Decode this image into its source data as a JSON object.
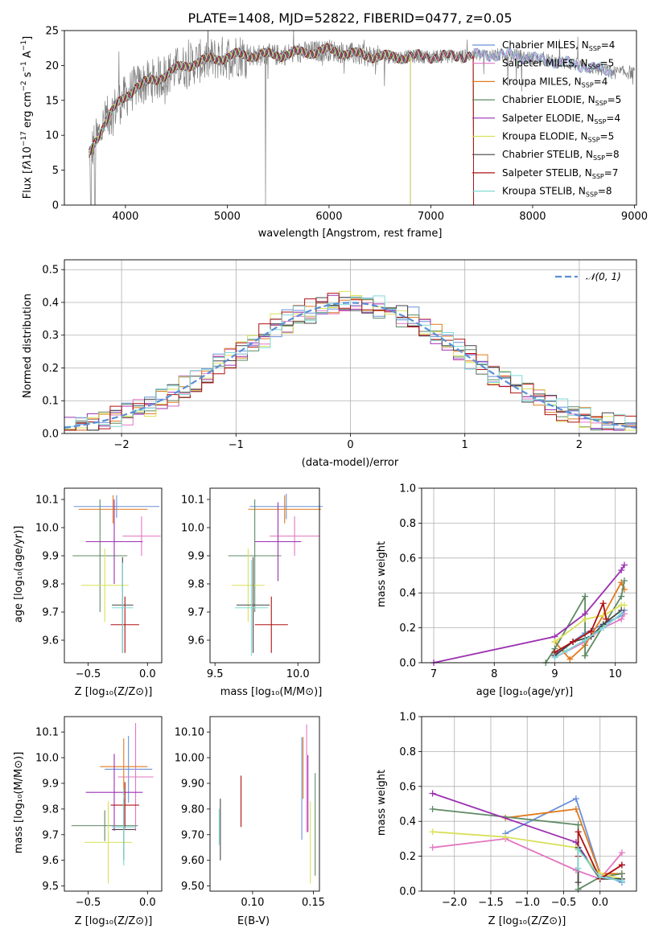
{
  "figure": {
    "title": "PLATE=1408, MJD=52822, FIBERID=0477, z=0.05",
    "palette": [
      "#6a8fd9",
      "#e377c2",
      "#e07a1f",
      "#5e8a63",
      "#9b30b0",
      "#d9e05a",
      "#444444",
      "#b01010",
      "#7fd9d6"
    ]
  },
  "chart_data": [
    {
      "type": "line",
      "id": "spectrum",
      "title": "PLATE=1408, MJD=52822, FIBERID=0477, z=0.05",
      "xlabel": "wavelength [Angstrom, rest frame]",
      "ylabel": "Flux [fλ10⁻¹⁷ erg cm⁻² s⁻¹ A⁻¹]",
      "xlim": [
        3400,
        9020
      ],
      "ylim": [
        0,
        25
      ],
      "xticks": [
        4000,
        5000,
        6000,
        7000,
        8000,
        9000
      ],
      "yticks": [
        0,
        5,
        10,
        15,
        20,
        25
      ],
      "continuum": [
        [
          3640,
          7
        ],
        [
          3700,
          9
        ],
        [
          3800,
          12
        ],
        [
          3900,
          14
        ],
        [
          4000,
          15.5
        ],
        [
          4100,
          17
        ],
        [
          4200,
          17.5
        ],
        [
          4300,
          18
        ],
        [
          4500,
          19.5
        ],
        [
          4700,
          20.5
        ],
        [
          4900,
          21
        ],
        [
          5100,
          21.5
        ],
        [
          5300,
          21.5
        ],
        [
          5500,
          21.5
        ],
        [
          5700,
          21.8
        ],
        [
          6000,
          22.2
        ],
        [
          6300,
          21.5
        ],
        [
          6600,
          21.2
        ],
        [
          6900,
          21.3
        ],
        [
          7200,
          21.3
        ],
        [
          7500,
          21.5
        ],
        [
          7800,
          21.5
        ],
        [
          8100,
          20.8
        ],
        [
          8400,
          20.2
        ],
        [
          8800,
          19
        ]
      ],
      "data_range": [
        3640,
        9000
      ],
      "legend_loc": "upper right",
      "series": [
        {
          "name": "Chabrier MILES, N",
          "sub": "SSP",
          "n": "=4",
          "end": 8790
        },
        {
          "name": "Salpeter MILES, N",
          "sub": "SSP",
          "n": "=5",
          "end": 8790
        },
        {
          "name": "Kroupa MILES, N",
          "sub": "SSP",
          "n": "=4",
          "end": 7420
        },
        {
          "name": "Chabrier ELODIE, N",
          "sub": "SSP",
          "n": "=5",
          "end": 6800
        },
        {
          "name": "Salpeter ELODIE, N",
          "sub": "SSP",
          "n": "=4",
          "end": 6800
        },
        {
          "name": "Kroupa ELODIE, N",
          "sub": "SSP",
          "n": "=5",
          "end": 6800
        },
        {
          "name": "Chabrier STELIB, N",
          "sub": "SSP",
          "n": "=8",
          "end": 7420
        },
        {
          "name": "Salpeter STELIB, N",
          "sub": "SSP",
          "n": "=7",
          "end": 7420
        },
        {
          "name": "Kroupa STELIB, N",
          "sub": "SSP",
          "n": "=8",
          "end": 8790
        }
      ]
    },
    {
      "type": "area",
      "id": "residuals",
      "xlabel": "(data-model)/error",
      "ylabel": "Normed distribution",
      "xlim": [
        -2.5,
        2.5
      ],
      "ylim": [
        0,
        0.53
      ],
      "xticks": [
        -2,
        -1,
        0,
        1,
        2
      ],
      "yticks": [
        0.0,
        0.1,
        0.2,
        0.3,
        0.4,
        0.5
      ],
      "bin_width": 0.1,
      "grid": true,
      "legend_loc": "upper right",
      "reference": {
        "label": "𝒩(0, 1)",
        "mean": 0,
        "sigma": 1
      }
    },
    {
      "type": "scatter",
      "id": "age_vs_Z",
      "xlabel": "Z [log₁₀(Z/Z⊙)]",
      "ylabel": "age  [log₁₀(age/yr)]",
      "xlim": [
        -0.7,
        0.12
      ],
      "ylim": [
        9.52,
        10.14
      ],
      "xticks": [
        -0.5,
        0.0
      ],
      "yticks": [
        9.6,
        9.7,
        9.8,
        9.9,
        10.0,
        10.1
      ],
      "points": [
        {
          "x": -0.26,
          "xerr": 0.36,
          "y": 10.075,
          "yerr": 0.04,
          "color": 0
        },
        {
          "x": -0.05,
          "xerr": 0.16,
          "y": 9.97,
          "yerr": 0.07,
          "color": 1
        },
        {
          "x": -0.29,
          "xerr": 0.29,
          "y": 10.065,
          "yerr": 0.05,
          "color": 2
        },
        {
          "x": -0.4,
          "xerr": 0.23,
          "y": 9.9,
          "yerr": 0.2,
          "color": 3
        },
        {
          "x": -0.28,
          "xerr": 0.24,
          "y": 9.95,
          "yerr": 0.15,
          "color": 4
        },
        {
          "x": -0.36,
          "xerr": 0.2,
          "y": 9.795,
          "yerr": 0.13,
          "color": 5
        },
        {
          "x": -0.21,
          "xerr": 0.09,
          "y": 9.725,
          "yerr": 0.17,
          "color": 6
        },
        {
          "x": -0.19,
          "xerr": 0.12,
          "y": 9.655,
          "yerr": 0.1,
          "color": 7
        },
        {
          "x": -0.21,
          "xerr": 0.09,
          "y": 9.715,
          "yerr": 0.16,
          "color": 8
        }
      ]
    },
    {
      "type": "scatter",
      "id": "age_vs_mass",
      "xlabel": "mass [log₁₀(M/M⊙)]",
      "ylabel": "",
      "xlim": [
        9.47,
        10.13
      ],
      "ylim": [
        9.52,
        10.14
      ],
      "xticks": [
        9.5,
        10.0
      ],
      "yticks": [
        9.6,
        9.7,
        9.8,
        9.9,
        10.0,
        10.1
      ],
      "points": [
        {
          "x": 9.93,
          "xerr": 0.22,
          "y": 10.075,
          "yerr": 0.045,
          "color": 0
        },
        {
          "x": 9.98,
          "xerr": 0.15,
          "y": 9.97,
          "yerr": 0.07,
          "color": 1
        },
        {
          "x": 9.92,
          "xerr": 0.22,
          "y": 10.065,
          "yerr": 0.05,
          "color": 2
        },
        {
          "x": 9.74,
          "xerr": 0.16,
          "y": 9.9,
          "yerr": 0.2,
          "color": 3
        },
        {
          "x": 9.88,
          "xerr": 0.14,
          "y": 9.95,
          "yerr": 0.14,
          "color": 4
        },
        {
          "x": 9.7,
          "xerr": 0.1,
          "y": 9.795,
          "yerr": 0.13,
          "color": 5
        },
        {
          "x": 9.73,
          "xerr": 0.1,
          "y": 9.725,
          "yerr": 0.17,
          "color": 6
        },
        {
          "x": 9.84,
          "xerr": 0.1,
          "y": 9.655,
          "yerr": 0.1,
          "color": 7
        },
        {
          "x": 9.72,
          "xerr": 0.1,
          "y": 9.715,
          "yerr": 0.17,
          "color": 8
        }
      ]
    },
    {
      "type": "line",
      "id": "massweight_vs_age",
      "xlabel": "age  [log₁₀(age/yr)]",
      "ylabel": "mass weight",
      "xlim": [
        6.8,
        10.35
      ],
      "ylim": [
        0,
        1
      ],
      "xticks": [
        7,
        8,
        9,
        10
      ],
      "yticks": [
        0.0,
        0.2,
        0.4,
        0.6,
        0.8,
        1.0
      ],
      "grid": true,
      "series": [
        {
          "color": 0,
          "x": [
            9.0,
            9.5,
            9.8,
            10.1,
            10.15
          ],
          "y": [
            0.05,
            0.17,
            0.22,
            0.27,
            0.3
          ]
        },
        {
          "color": 1,
          "x": [
            9.0,
            9.5,
            9.8,
            10.1,
            10.15
          ],
          "y": [
            0.03,
            0.12,
            0.2,
            0.25,
            0.28
          ]
        },
        {
          "color": 2,
          "x": [
            9.0,
            9.25,
            9.5,
            9.8,
            10.1,
            10.15
          ],
          "y": [
            0.12,
            0.02,
            0.1,
            0.27,
            0.46,
            0.42
          ]
        },
        {
          "color": 3,
          "x": [
            8.85,
            9.0,
            9.5,
            9.5,
            10.1,
            10.15
          ],
          "y": [
            0.0,
            0.08,
            0.38,
            0.04,
            0.38,
            0.47
          ]
        },
        {
          "color": 4,
          "x": [
            7.0,
            9.0,
            9.5,
            10.1,
            10.15
          ],
          "y": [
            0.0,
            0.15,
            0.28,
            0.53,
            0.56
          ]
        },
        {
          "color": 5,
          "x": [
            9.0,
            9.5,
            9.8,
            10.1,
            10.15
          ],
          "y": [
            0.12,
            0.25,
            0.27,
            0.33,
            0.33
          ]
        },
        {
          "color": 6,
          "x": [
            9.0,
            9.3,
            9.6,
            9.8,
            10.1
          ],
          "y": [
            0.04,
            0.12,
            0.15,
            0.22,
            0.3
          ]
        },
        {
          "color": 7,
          "x": [
            9.0,
            9.3,
            9.6,
            9.8,
            9.85
          ],
          "y": [
            0.06,
            0.12,
            0.18,
            0.34,
            0.25
          ]
        },
        {
          "color": 8,
          "x": [
            9.0,
            9.2,
            9.5,
            9.8,
            10.1
          ],
          "y": [
            0.03,
            0.07,
            0.13,
            0.2,
            0.28
          ]
        }
      ]
    },
    {
      "type": "scatter",
      "id": "mass_vs_Z",
      "xlabel": "Z [log₁₀(Z/Z⊙)]",
      "ylabel": "mass [log₁₀(M/M⊙)]",
      "xlim": [
        -0.7,
        0.12
      ],
      "ylim": [
        9.48,
        10.16
      ],
      "xticks": [
        -0.5,
        0.0
      ],
      "yticks": [
        9.5,
        9.6,
        9.7,
        9.8,
        9.9,
        10.0,
        10.1
      ],
      "points": [
        {
          "x": -0.16,
          "xerr": 0.2,
          "y": 9.955,
          "yerr": 0.13,
          "color": 0
        },
        {
          "x": -0.1,
          "xerr": 0.15,
          "y": 9.925,
          "yerr": 0.21,
          "color": 1
        },
        {
          "x": -0.2,
          "xerr": 0.2,
          "y": 9.965,
          "yerr": 0.11,
          "color": 2
        },
        {
          "x": -0.36,
          "xerr": 0.28,
          "y": 9.735,
          "yerr": 0.06,
          "color": 3
        },
        {
          "x": -0.28,
          "xerr": 0.24,
          "y": 9.865,
          "yerr": 0.15,
          "color": 4
        },
        {
          "x": -0.33,
          "xerr": 0.2,
          "y": 9.67,
          "yerr": 0.16,
          "color": 5
        },
        {
          "x": -0.2,
          "xerr": 0.1,
          "y": 9.72,
          "yerr": 0.12,
          "color": 6
        },
        {
          "x": -0.19,
          "xerr": 0.12,
          "y": 9.815,
          "yerr": 0.09,
          "color": 7
        },
        {
          "x": -0.2,
          "xerr": 0.1,
          "y": 9.73,
          "yerr": 0.15,
          "color": 8
        }
      ]
    },
    {
      "type": "scatter",
      "id": "mass_vs_EBV",
      "xlabel": "E(B-V)",
      "ylabel": "",
      "xlim": [
        0.065,
        0.155
      ],
      "ylim": [
        9.48,
        10.16
      ],
      "xticks": [
        0.1,
        0.15
      ],
      "yticks": [
        9.5,
        9.6,
        9.7,
        9.8,
        9.9,
        10.0,
        10.1
      ],
      "points": [
        {
          "x": 0.1405,
          "y": 9.88,
          "yerr": 0.2,
          "color": 0
        },
        {
          "x": 0.1445,
          "y": 9.92,
          "yerr": 0.21,
          "color": 1
        },
        {
          "x": 0.1415,
          "y": 9.96,
          "yerr": 0.12,
          "color": 2
        },
        {
          "x": 0.1515,
          "y": 9.74,
          "yerr": 0.2,
          "color": 3
        },
        {
          "x": 0.1455,
          "y": 9.86,
          "yerr": 0.15,
          "color": 4
        },
        {
          "x": 0.1475,
          "y": 9.67,
          "yerr": 0.16,
          "color": 5
        },
        {
          "x": 0.0735,
          "y": 9.72,
          "yerr": 0.12,
          "color": 6
        },
        {
          "x": 0.0905,
          "y": 9.83,
          "yerr": 0.1,
          "color": 7
        },
        {
          "x": 0.0725,
          "y": 9.73,
          "yerr": 0.07,
          "color": 8
        }
      ]
    },
    {
      "type": "line",
      "id": "massweight_vs_Z",
      "xlabel": "Z [log₁₀(Z/Z⊙)]",
      "ylabel": "mass weight",
      "xlim": [
        -2.45,
        0.5
      ],
      "ylim": [
        0,
        1
      ],
      "xticks": [
        -2.0,
        -1.5,
        -1.0,
        -0.5,
        0.0
      ],
      "yticks": [
        0.0,
        0.2,
        0.4,
        0.6,
        0.8,
        1.0
      ],
      "grid": true,
      "series": [
        {
          "color": 0,
          "x": [
            -1.3,
            -0.33,
            0.0,
            0.3
          ],
          "y": [
            0.33,
            0.53,
            0.1,
            0.05
          ]
        },
        {
          "color": 1,
          "x": [
            -2.3,
            -1.3,
            -0.33,
            0.0,
            0.3
          ],
          "y": [
            0.25,
            0.3,
            0.12,
            0.07,
            0.22
          ]
        },
        {
          "color": 2,
          "x": [
            -1.3,
            -0.33,
            0.0,
            0.3
          ],
          "y": [
            0.42,
            0.47,
            0.1,
            0.1
          ]
        },
        {
          "color": 3,
          "x": [
            -2.3,
            -0.3,
            -0.3,
            0.0,
            0.3
          ],
          "y": [
            0.47,
            0.38,
            0.01,
            0.08,
            0.1
          ]
        },
        {
          "color": 4,
          "x": [
            -2.3,
            -0.33,
            0.0,
            0.3
          ],
          "y": [
            0.56,
            0.28,
            0.07,
            0.15
          ]
        },
        {
          "color": 5,
          "x": [
            -2.3,
            -1.3,
            -0.33,
            0.0,
            0.3
          ],
          "y": [
            0.34,
            0.31,
            0.25,
            0.1,
            0.07
          ]
        },
        {
          "color": 6,
          "x": [
            -0.3,
            -0.3,
            0.0,
            0.3
          ],
          "y": [
            0.05,
            0.25,
            0.07,
            0.07
          ]
        },
        {
          "color": 7,
          "x": [
            -0.3,
            -0.3,
            0.0,
            0.3
          ],
          "y": [
            0.2,
            0.34,
            0.07,
            0.15
          ]
        },
        {
          "color": 8,
          "x": [
            -0.3,
            -0.3,
            0.0,
            0.3
          ],
          "y": [
            0.13,
            0.24,
            0.08,
            0.06
          ]
        }
      ]
    }
  ]
}
